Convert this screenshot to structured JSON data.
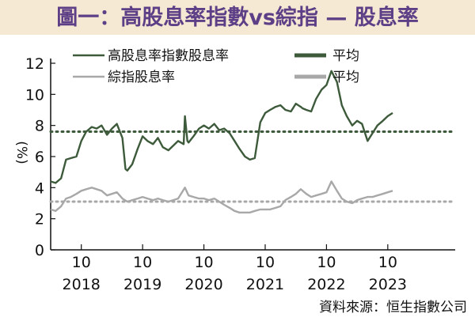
{
  "title": "圖一：高股息率指數vs綜指 — 股息率",
  "source": "資料來源：恒生指數公司",
  "colors": {
    "title_bg": "#f6e9d3",
    "title_text": "#5c3f86",
    "high_div": "#3d5a3b",
    "hsi_comp": "#a8a8a8"
  },
  "chart_data": {
    "type": "line",
    "title": "圖一：高股息率指數vs綜指 — 股息率",
    "ylabel": "(%)",
    "ylim": [
      0,
      12
    ],
    "yticks": [
      0,
      2,
      4,
      6,
      8,
      10,
      12
    ],
    "xlim": [
      2017.25,
      2023.85
    ],
    "grid": false,
    "legend_position": "top-left",
    "x_ticks": [
      {
        "x": 2017.75,
        "label": "10",
        "year": "2018"
      },
      {
        "x": 2018.75,
        "label": "10",
        "year": "2019"
      },
      {
        "x": 2019.75,
        "label": "10",
        "year": "2020"
      },
      {
        "x": 2020.75,
        "label": "10",
        "year": "2021"
      },
      {
        "x": 2021.75,
        "label": "10",
        "year": "2022"
      },
      {
        "x": 2022.75,
        "label": "10",
        "year": "2023"
      }
    ],
    "series": [
      {
        "name": "高股息率指數股息率",
        "color": "#3d5a3b",
        "average": 7.6,
        "average_label": "平均",
        "x": [
          2017.25,
          2017.33,
          2017.42,
          2017.5,
          2017.58,
          2017.67,
          2017.75,
          2017.83,
          2017.92,
          2018.0,
          2018.08,
          2018.17,
          2018.25,
          2018.33,
          2018.42,
          2018.47,
          2018.5,
          2018.58,
          2018.67,
          2018.75,
          2018.83,
          2018.92,
          2019.0,
          2019.08,
          2019.17,
          2019.25,
          2019.33,
          2019.42,
          2019.44,
          2019.48,
          2019.5,
          2019.58,
          2019.67,
          2019.75,
          2019.83,
          2019.92,
          2020.0,
          2020.08,
          2020.17,
          2020.25,
          2020.33,
          2020.42,
          2020.5,
          2020.58,
          2020.67,
          2020.75,
          2020.83,
          2020.92,
          2021.0,
          2021.08,
          2021.17,
          2021.25,
          2021.33,
          2021.36,
          2021.42,
          2021.5,
          2021.58,
          2021.67,
          2021.75,
          2021.83,
          2021.92,
          2022.0,
          2022.08,
          2022.17,
          2022.25,
          2022.33,
          2022.42,
          2022.5,
          2022.58,
          2022.67,
          2022.75,
          2022.83
        ],
        "y": [
          4.4,
          4.3,
          4.6,
          5.8,
          5.9,
          6.0,
          7.0,
          7.6,
          7.9,
          7.8,
          8.0,
          7.4,
          7.8,
          8.1,
          7.2,
          5.2,
          5.1,
          5.5,
          6.5,
          7.3,
          7.0,
          6.8,
          7.2,
          6.6,
          6.4,
          6.7,
          7.0,
          6.8,
          8.6,
          7.0,
          6.9,
          7.3,
          7.8,
          8.0,
          7.8,
          8.1,
          7.7,
          7.8,
          7.5,
          7.0,
          6.5,
          6.0,
          5.8,
          5.9,
          8.2,
          8.8,
          9.0,
          9.2,
          9.3,
          9.0,
          8.9,
          9.4,
          9.2,
          9.1,
          9.0,
          8.9,
          9.7,
          10.3,
          10.6,
          11.5,
          10.8,
          9.3,
          8.6,
          8.0,
          8.3,
          8.1,
          7.0,
          7.5,
          8.0,
          8.3,
          8.6,
          8.8
        ]
      },
      {
        "name": "綜指股息率",
        "color": "#a8a8a8",
        "average": 3.1,
        "average_label": "平均",
        "x": [
          2017.25,
          2017.33,
          2017.42,
          2017.5,
          2017.58,
          2017.67,
          2017.75,
          2017.83,
          2017.92,
          2018.0,
          2018.08,
          2018.17,
          2018.25,
          2018.33,
          2018.42,
          2018.5,
          2018.58,
          2018.67,
          2018.75,
          2018.83,
          2018.92,
          2019.0,
          2019.08,
          2019.17,
          2019.25,
          2019.33,
          2019.44,
          2019.5,
          2019.58,
          2019.67,
          2019.75,
          2019.83,
          2019.92,
          2020.0,
          2020.08,
          2020.17,
          2020.25,
          2020.33,
          2020.42,
          2020.5,
          2020.58,
          2020.67,
          2020.75,
          2020.83,
          2020.92,
          2021.0,
          2021.08,
          2021.17,
          2021.25,
          2021.33,
          2021.42,
          2021.5,
          2021.58,
          2021.67,
          2021.75,
          2021.83,
          2021.92,
          2022.0,
          2022.08,
          2022.17,
          2022.25,
          2022.33,
          2022.42,
          2022.5,
          2022.58,
          2022.67,
          2022.75,
          2022.83
        ],
        "y": [
          2.6,
          2.5,
          2.8,
          3.3,
          3.4,
          3.6,
          3.8,
          3.9,
          4.0,
          3.9,
          3.8,
          3.5,
          3.6,
          3.7,
          3.3,
          3.1,
          3.2,
          3.3,
          3.4,
          3.3,
          3.2,
          3.3,
          3.2,
          3.1,
          3.2,
          3.3,
          4.0,
          3.5,
          3.4,
          3.3,
          3.3,
          3.2,
          3.3,
          3.1,
          2.9,
          2.7,
          2.5,
          2.4,
          2.4,
          2.4,
          2.5,
          2.6,
          2.6,
          2.6,
          2.7,
          2.8,
          3.2,
          3.4,
          3.6,
          3.9,
          3.6,
          3.4,
          3.5,
          3.6,
          3.7,
          4.4,
          3.8,
          3.3,
          3.1,
          3.0,
          3.2,
          3.3,
          3.4,
          3.4,
          3.5,
          3.6,
          3.7,
          3.8
        ]
      }
    ]
  }
}
